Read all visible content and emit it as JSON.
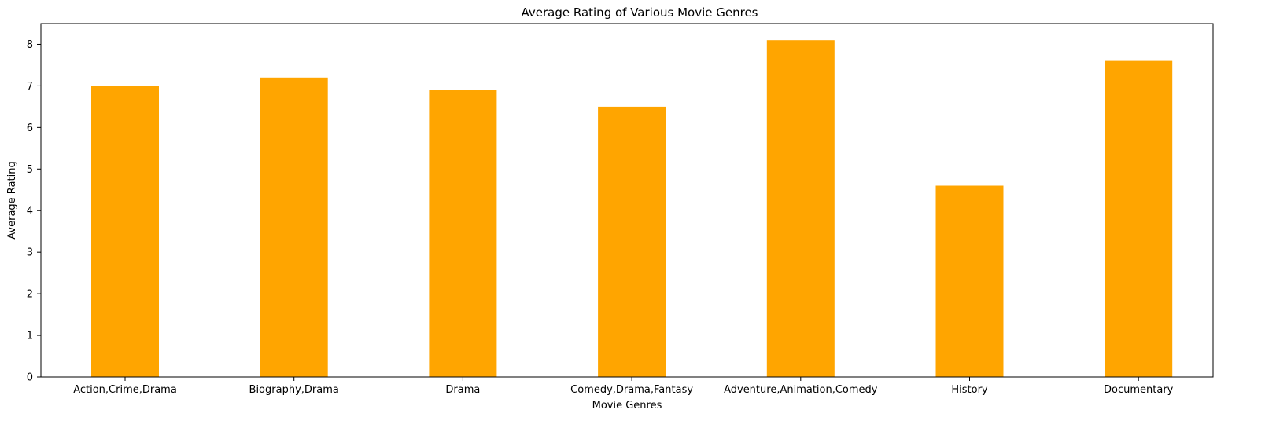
{
  "chart_data": {
    "type": "bar",
    "title": "Average Rating of Various Movie Genres",
    "xlabel": "Movie Genres",
    "ylabel": "Average Rating",
    "categories": [
      "Action,Crime,Drama",
      "Biography,Drama",
      "Drama",
      "Comedy,Drama,Fantasy",
      "Adventure,Animation,Comedy",
      "History",
      "Documentary"
    ],
    "values": [
      7.0,
      7.2,
      6.9,
      6.5,
      8.1,
      4.6,
      7.6
    ],
    "ylim": [
      0,
      8.5
    ],
    "yticks": [
      0,
      1,
      2,
      3,
      4,
      5,
      6,
      7,
      8
    ],
    "bar_color": "#FFA500",
    "grid": false,
    "legend": "none"
  }
}
